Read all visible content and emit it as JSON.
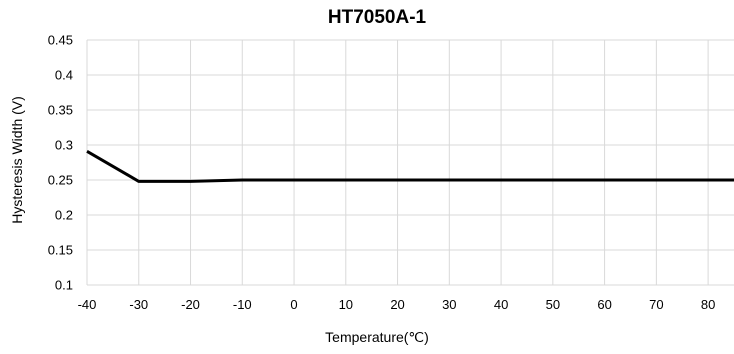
{
  "chart_data": {
    "type": "line",
    "title": "HT7050A-1",
    "xlabel": "Temperature(℃)",
    "ylabel": "Hysteresis Width (V)",
    "xlim": [
      -40,
      85
    ],
    "ylim": [
      0.1,
      0.45
    ],
    "x_ticks": [
      "-40",
      "-30",
      "-20",
      "-10",
      "0",
      "10",
      "20",
      "30",
      "40",
      "50",
      "60",
      "70",
      "80"
    ],
    "y_ticks": [
      "0.45",
      "0.4",
      "0.35",
      "0.3",
      "0.25",
      "0.2",
      "0.15",
      "0.1"
    ],
    "grid": true,
    "legend": "none",
    "series": [
      {
        "color": "#000000",
        "x": [
          -40,
          -30,
          -20,
          -10,
          0,
          10,
          20,
          30,
          40,
          50,
          60,
          70,
          80,
          85
        ],
        "y": [
          0.291,
          0.248,
          0.248,
          0.25,
          0.25,
          0.25,
          0.25,
          0.25,
          0.25,
          0.25,
          0.25,
          0.25,
          0.25,
          0.25
        ]
      }
    ]
  }
}
